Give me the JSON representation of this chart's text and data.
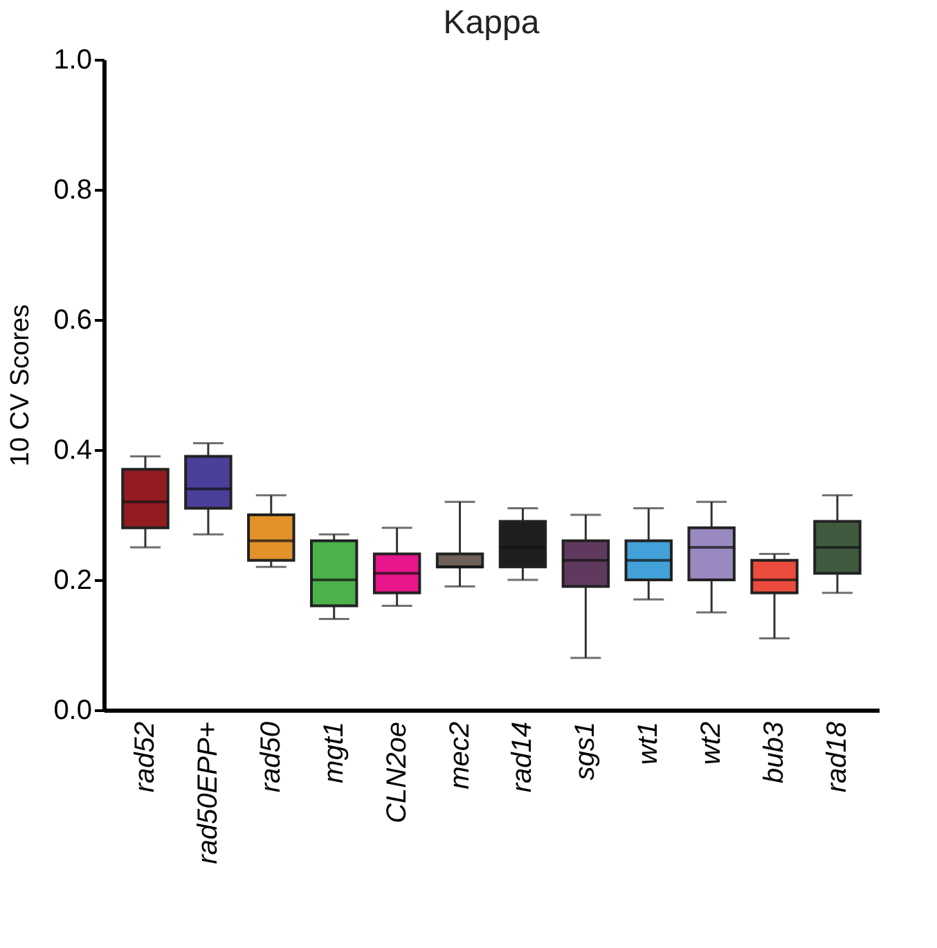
{
  "chart_data": {
    "type": "box",
    "title": "Kappa",
    "ylabel": "10 CV Scores",
    "categories": [
      "rad52",
      "rad50EPP+",
      "rad50",
      "mgt1",
      "CLN2oe",
      "mec2",
      "rad14",
      "sgs1",
      "wt1",
      "wt2",
      "bub3",
      "rad18"
    ],
    "colors": [
      "#931c20",
      "#4a3f99",
      "#e1922a",
      "#4bb14a",
      "#e8168c",
      "#6f6157",
      "#1e1e1e",
      "#603a5e",
      "#41a1d8",
      "#9a89c0",
      "#ec4c3e",
      "#405a3f"
    ],
    "boxes": [
      {
        "low": 0.25,
        "q1": 0.28,
        "median": 0.32,
        "q3": 0.37,
        "high": 0.39
      },
      {
        "low": 0.27,
        "q1": 0.31,
        "median": 0.34,
        "q3": 0.39,
        "high": 0.41
      },
      {
        "low": 0.22,
        "q1": 0.23,
        "median": 0.26,
        "q3": 0.3,
        "high": 0.33
      },
      {
        "low": 0.14,
        "q1": 0.16,
        "median": 0.2,
        "q3": 0.26,
        "high": 0.27
      },
      {
        "low": 0.16,
        "q1": 0.18,
        "median": 0.21,
        "q3": 0.24,
        "high": 0.28
      },
      {
        "low": 0.19,
        "q1": 0.22,
        "median": 0.22,
        "q3": 0.24,
        "high": 0.32
      },
      {
        "low": 0.2,
        "q1": 0.22,
        "median": 0.25,
        "q3": 0.29,
        "high": 0.31
      },
      {
        "low": 0.08,
        "q1": 0.19,
        "median": 0.23,
        "q3": 0.26,
        "high": 0.3
      },
      {
        "low": 0.17,
        "q1": 0.2,
        "median": 0.23,
        "q3": 0.26,
        "high": 0.31
      },
      {
        "low": 0.15,
        "q1": 0.2,
        "median": 0.25,
        "q3": 0.28,
        "high": 0.32
      },
      {
        "low": 0.11,
        "q1": 0.18,
        "median": 0.2,
        "q3": 0.23,
        "high": 0.24
      },
      {
        "low": 0.18,
        "q1": 0.21,
        "median": 0.25,
        "q3": 0.29,
        "high": 0.33
      }
    ],
    "ylim": [
      0,
      1
    ],
    "yticks": [
      {
        "value": 0,
        "label": "0.0"
      },
      {
        "value": 0.2,
        "label": "0.2"
      },
      {
        "value": 0.4,
        "label": "0.4"
      },
      {
        "value": 0.6,
        "label": "0.6"
      },
      {
        "value": 0.8,
        "label": "0.8"
      },
      {
        "value": 1,
        "label": "1.0"
      }
    ],
    "grid": false
  }
}
